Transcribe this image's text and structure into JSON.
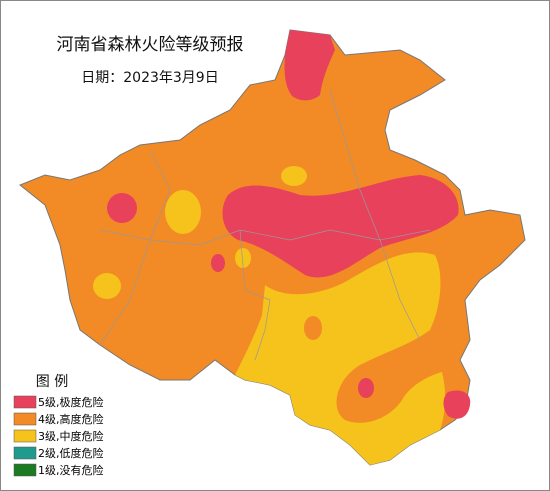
{
  "title": "河南省森林火险等级预报",
  "date": "日期：2023年3月9日",
  "legend": {
    "title": "图 例",
    "items": [
      {
        "label": "5级,极度危险",
        "color": "#e8415b"
      },
      {
        "label": "4级,高度危险",
        "color": "#f28a25"
      },
      {
        "label": "3级,中度危险",
        "color": "#f6c21c"
      },
      {
        "label": "2级,低度危险",
        "color": "#1f9a8c"
      },
      {
        "label": "1级,没有危险",
        "color": "#1c7a22"
      }
    ]
  }
}
